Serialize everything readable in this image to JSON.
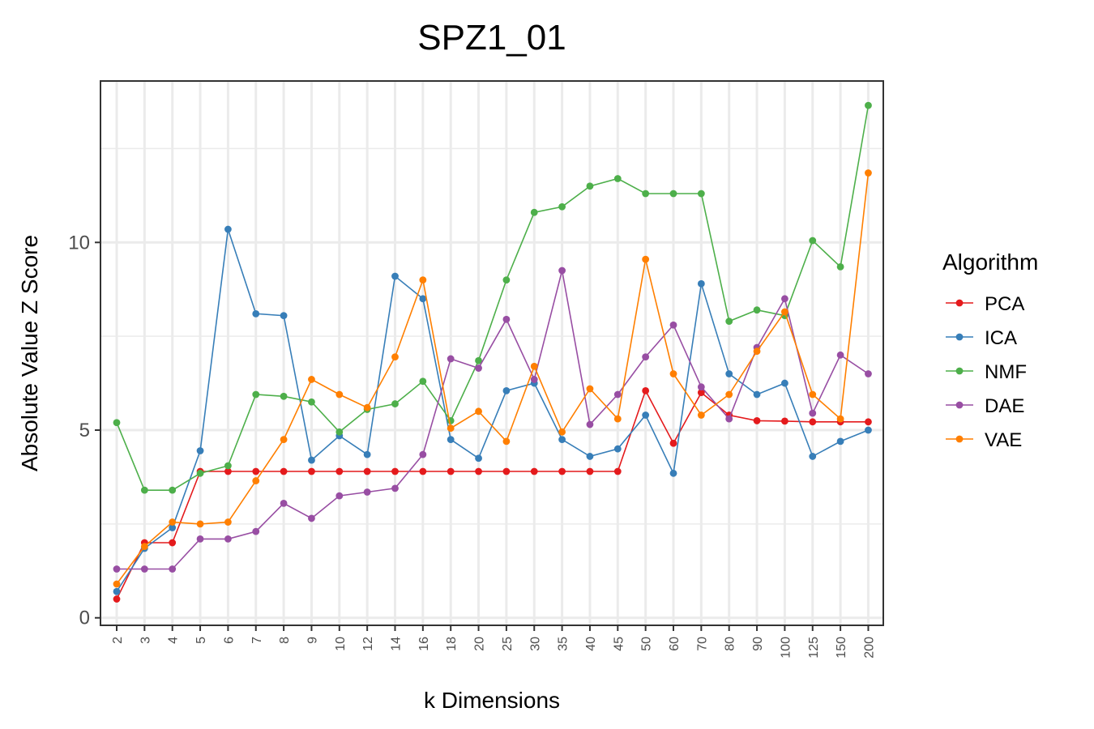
{
  "chart_data": {
    "type": "line",
    "title": "SPZ1_01",
    "xlabel": "k Dimensions",
    "ylabel": "Absolute Value Z Score",
    "categories": [
      "2",
      "3",
      "4",
      "5",
      "6",
      "7",
      "8",
      "9",
      "10",
      "12",
      "14",
      "16",
      "18",
      "20",
      "25",
      "30",
      "35",
      "40",
      "45",
      "50",
      "60",
      "70",
      "80",
      "90",
      "100",
      "125",
      "150",
      "200"
    ],
    "ylim": [
      -0.2,
      14.3
    ],
    "yticks": [
      0,
      5,
      10
    ],
    "ytick_labels": [
      "0",
      "5",
      "10"
    ],
    "grid": true,
    "legend": {
      "title": "Algorithm",
      "position": "right"
    },
    "series": [
      {
        "name": "PCA",
        "color": "#e41a1c",
        "values": [
          0.5,
          2.0,
          2.0,
          3.9,
          3.9,
          3.9,
          3.9,
          3.9,
          3.9,
          3.9,
          3.9,
          3.9,
          3.9,
          3.9,
          3.9,
          3.9,
          3.9,
          3.9,
          3.9,
          6.05,
          4.65,
          6.0,
          5.4,
          5.25,
          5.24,
          5.22,
          5.22,
          5.22
        ]
      },
      {
        "name": "ICA",
        "color": "#377eb8",
        "values": [
          0.7,
          1.85,
          2.4,
          4.45,
          10.35,
          8.1,
          8.05,
          4.2,
          4.85,
          4.35,
          9.1,
          8.5,
          4.75,
          4.25,
          6.05,
          6.25,
          4.75,
          4.3,
          4.5,
          5.4,
          3.85,
          8.9,
          6.5,
          5.95,
          6.25,
          4.3,
          4.7,
          5.0
        ]
      },
      {
        "name": "NMF",
        "color": "#4daf4a",
        "values": [
          5.2,
          3.4,
          3.4,
          3.85,
          4.05,
          5.95,
          5.9,
          5.75,
          4.95,
          5.55,
          5.7,
          6.3,
          5.25,
          6.85,
          9.0,
          10.8,
          10.95,
          11.5,
          11.7,
          11.3,
          11.3,
          11.3,
          7.9,
          8.2,
          8.05,
          10.05,
          9.35,
          13.65
        ]
      },
      {
        "name": "DAE",
        "color": "#984ea3",
        "values": [
          1.3,
          1.3,
          1.3,
          2.1,
          2.1,
          2.3,
          3.05,
          2.65,
          3.25,
          3.35,
          3.45,
          4.35,
          6.9,
          6.65,
          7.95,
          6.35,
          9.25,
          5.15,
          5.95,
          6.95,
          7.8,
          6.15,
          5.3,
          7.2,
          8.5,
          5.45,
          7.0,
          6.5
        ]
      },
      {
        "name": "VAE",
        "color": "#ff7f00",
        "values": [
          0.9,
          1.9,
          2.55,
          2.5,
          2.55,
          3.65,
          4.75,
          6.35,
          5.95,
          5.6,
          6.95,
          9.0,
          5.05,
          5.5,
          4.7,
          6.7,
          4.95,
          6.1,
          5.3,
          9.55,
          6.5,
          5.4,
          5.95,
          7.1,
          8.15,
          5.95,
          5.3,
          11.85
        ]
      }
    ]
  }
}
